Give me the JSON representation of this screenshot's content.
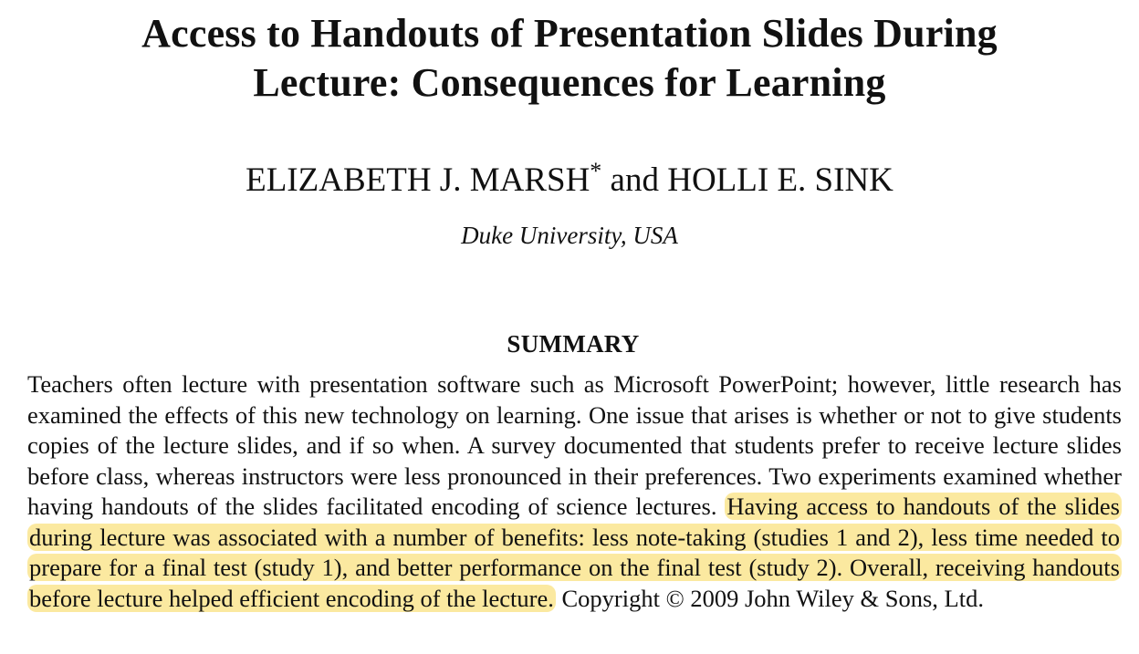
{
  "title": {
    "line1": "Access to Handouts of Presentation Slides During",
    "line2": "Lecture: Consequences for Learning"
  },
  "authors": {
    "author1": "ELIZABETH J. MARSH",
    "author1_mark": "*",
    "conjunction": "and",
    "author2": "HOLLI E. SINK"
  },
  "affiliation": "Duke University, USA",
  "summary": {
    "heading": "SUMMARY",
    "text_before": "Teachers often lecture with presentation software such as Microsoft PowerPoint; however, little research has examined the effects of this new technology on learning. One issue that arises is whether or not to give students copies of the lecture slides, and if so when. A survey documented that students prefer to receive lecture slides before class, whereas instructors were less pronounced in their preferences. Two experiments examined whether having handouts of the slides facilitated encoding of science lectures. ",
    "text_highlighted": "Having access to handouts of the slides during lecture was associated with a number of benefits: less note-taking (studies 1 and 2), less time needed to prepare for a final test (study 1), and better performance on the final test (study 2). Overall, receiving handouts before lecture helped efficient encoding of the lecture.",
    "copyright": " Copyright © 2009 John Wiley & Sons, Ltd.",
    "highlight_color": "#fbe9a0"
  }
}
